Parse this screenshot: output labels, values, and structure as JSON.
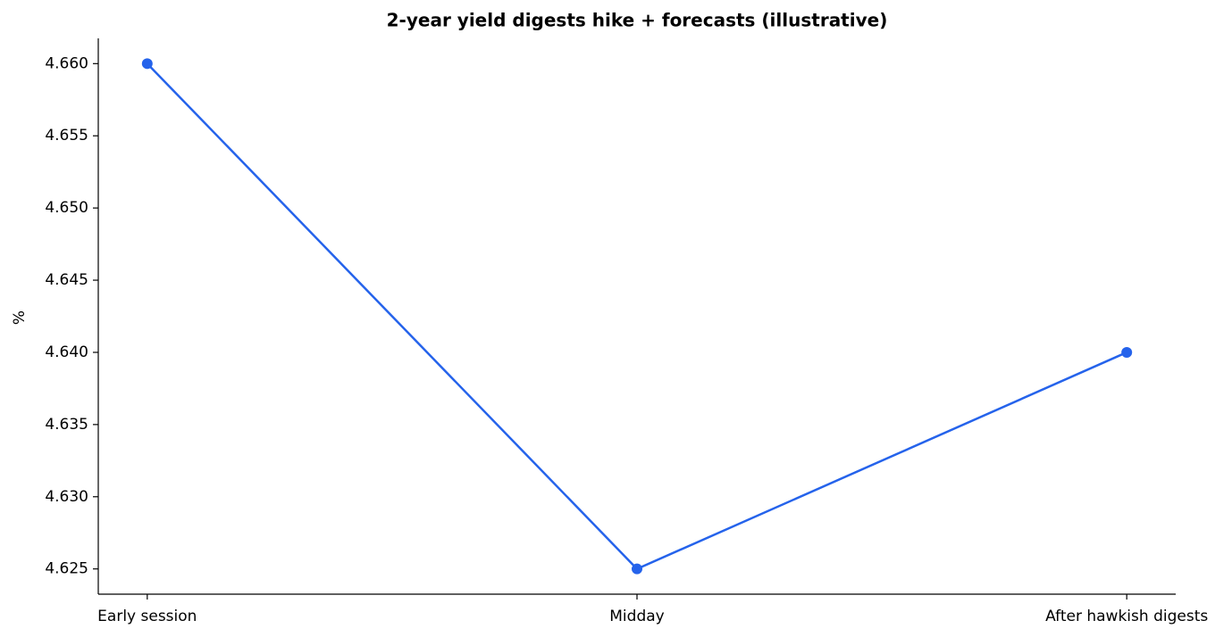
{
  "chart_data": {
    "type": "line",
    "title": "2-year yield digests hike + forecasts (illustrative)",
    "y_label": "%",
    "categories": [
      "Early session",
      "Midday",
      "After hawkish digests"
    ],
    "values": [
      4.66,
      4.625,
      4.64
    ],
    "color": "#2563eb",
    "ylim": [
      4.62325,
      4.66175
    ],
    "yticks": [
      4.625,
      {
        "value": 4.63,
        "label": "4.630"
      },
      4.635,
      {
        "value": 4.64,
        "label": "4.640"
      },
      4.645,
      {
        "value": 4.65,
        "label": "4.650"
      },
      4.655,
      {
        "value": 4.66,
        "label": "4.660"
      }
    ],
    "grid": false
  }
}
